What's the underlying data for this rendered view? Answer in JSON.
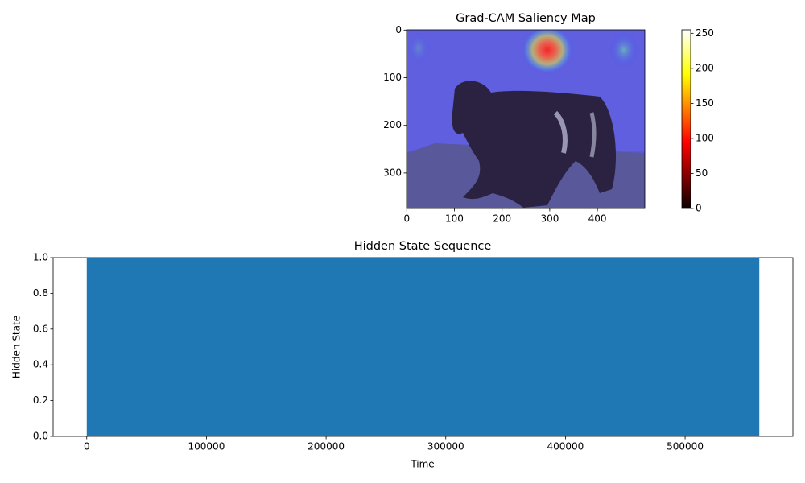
{
  "chart_data": [
    {
      "type": "image",
      "title": "Grad-CAM Saliency Map",
      "xlim": [
        -0.5,
        499.5
      ],
      "ylim": [
        374.5,
        -0.5
      ],
      "xticks": [
        0,
        100,
        200,
        300,
        400
      ],
      "yticks": [
        0,
        100,
        200,
        300
      ],
      "colorbar": {
        "lim": [
          0,
          255
        ],
        "ticks": [
          0,
          50,
          100,
          150,
          200,
          250
        ],
        "colormap": "hot"
      }
    },
    {
      "type": "area",
      "title": "Hidden State Sequence",
      "xlabel": "Time",
      "ylabel": "Hidden State",
      "x": [
        0,
        562000
      ],
      "values": [
        1,
        1
      ],
      "color": "#1f77b4",
      "xlim": [
        -28100,
        590100
      ],
      "ylim": [
        0,
        1
      ],
      "xticks": [
        0,
        100000,
        200000,
        300000,
        400000,
        500000
      ],
      "yticks": [
        {
          "value": 0,
          "label": "0.0"
        },
        {
          "value": 0.2,
          "label": "0.2"
        },
        {
          "value": 0.4,
          "label": "0.4"
        },
        {
          "value": 0.6,
          "label": "0.6"
        },
        {
          "value": 0.8,
          "label": "0.8"
        },
        {
          "value": 1,
          "label": "1.0"
        }
      ]
    }
  ]
}
